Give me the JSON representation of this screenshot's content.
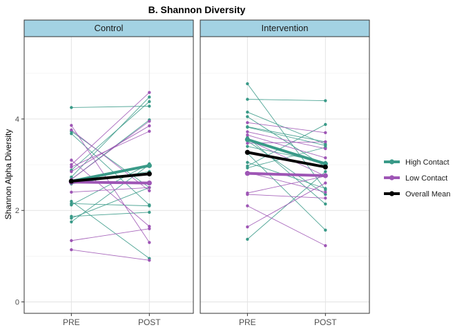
{
  "chart_data": {
    "type": "line",
    "title": "B. Shannon Diversity",
    "ylabel": "Shannon Alpha Diversity",
    "xlabel": "",
    "categories": [
      "PRE",
      "POST"
    ],
    "ylim": [
      -0.25,
      5.8
    ],
    "yticks": [
      0,
      2,
      4
    ],
    "grid": true,
    "legend_position": "right",
    "legend": [
      {
        "key": "high",
        "label": "High Contact",
        "color": "#3a9a88"
      },
      {
        "key": "low",
        "label": "Low Contact",
        "color": "#9e56b5"
      },
      {
        "key": "mean",
        "label": "Overall Mean",
        "color": "#000000"
      }
    ],
    "panels": [
      {
        "title": "Control",
        "individuals": [
          {
            "group": "high",
            "values": [
              4.25,
              4.28
            ]
          },
          {
            "group": "high",
            "values": [
              3.73,
              2.5
            ]
          },
          {
            "group": "high",
            "values": [
              3.68,
              2.12
            ]
          },
          {
            "group": "high",
            "values": [
              2.88,
              4.38
            ]
          },
          {
            "group": "high",
            "values": [
              2.73,
              4.48
            ]
          },
          {
            "group": "high",
            "values": [
              2.68,
              3.98
            ]
          },
          {
            "group": "high",
            "values": [
              2.58,
              2.85
            ]
          },
          {
            "group": "high",
            "values": [
              2.2,
              0.95
            ]
          },
          {
            "group": "high",
            "values": [
              2.15,
              2.1
            ]
          },
          {
            "group": "high",
            "values": [
              2.12,
              3.02
            ]
          },
          {
            "group": "high",
            "values": [
              1.87,
              1.96
            ]
          },
          {
            "group": "high",
            "values": [
              1.83,
              2.5
            ]
          },
          {
            "group": "high",
            "values": [
              1.75,
              3.0
            ]
          },
          {
            "group": "low",
            "values": [
              3.86,
              1.3
            ]
          },
          {
            "group": "low",
            "values": [
              3.76,
              2.43
            ]
          },
          {
            "group": "low",
            "values": [
              3.1,
              1.65
            ]
          },
          {
            "group": "low",
            "values": [
              3.0,
              4.58
            ]
          },
          {
            "group": "low",
            "values": [
              2.95,
              3.73
            ]
          },
          {
            "group": "low",
            "values": [
              2.85,
              3.85
            ]
          },
          {
            "group": "low",
            "values": [
              2.68,
              3.95
            ]
          },
          {
            "group": "low",
            "values": [
              2.4,
              2.5
            ]
          },
          {
            "group": "low",
            "values": [
              1.34,
              1.6
            ]
          },
          {
            "group": "low",
            "values": [
              1.14,
              0.91
            ]
          }
        ],
        "means": [
          {
            "group": "high",
            "values": [
              2.64,
              2.98
            ]
          },
          {
            "group": "low",
            "values": [
              2.62,
              2.6
            ]
          },
          {
            "group": "mean",
            "values": [
              2.64,
              2.8
            ]
          }
        ]
      },
      {
        "title": "Intervention",
        "individuals": [
          {
            "group": "high",
            "values": [
              4.77,
              2.45
            ]
          },
          {
            "group": "high",
            "values": [
              4.43,
              4.4
            ]
          },
          {
            "group": "high",
            "values": [
              4.15,
              3.45
            ]
          },
          {
            "group": "high",
            "values": [
              4.05,
              2.95
            ]
          },
          {
            "group": "high",
            "values": [
              3.83,
              3.5
            ]
          },
          {
            "group": "high",
            "values": [
              3.82,
              3.42
            ]
          },
          {
            "group": "high",
            "values": [
              3.6,
              2.14
            ]
          },
          {
            "group": "high",
            "values": [
              3.52,
              2.35
            ]
          },
          {
            "group": "high",
            "values": [
              3.4,
              3.05
            ]
          },
          {
            "group": "high",
            "values": [
              3.25,
              1.57
            ]
          },
          {
            "group": "high",
            "values": [
              3.05,
              2.48
            ]
          },
          {
            "group": "high",
            "values": [
              2.97,
              3.88
            ]
          },
          {
            "group": "high",
            "values": [
              2.93,
              3.38
            ]
          },
          {
            "group": "high",
            "values": [
              1.37,
              2.85
            ]
          },
          {
            "group": "low",
            "values": [
              3.92,
              3.7
            ]
          },
          {
            "group": "low",
            "values": [
              3.72,
              3.35
            ]
          },
          {
            "group": "low",
            "values": [
              3.65,
              3.15
            ]
          },
          {
            "group": "low",
            "values": [
              3.55,
              2.75
            ]
          },
          {
            "group": "low",
            "values": [
              3.47,
              3.5
            ]
          },
          {
            "group": "low",
            "values": [
              2.83,
              2.4
            ]
          },
          {
            "group": "low",
            "values": [
              2.38,
              2.75
            ]
          },
          {
            "group": "low",
            "values": [
              2.35,
              2.27
            ]
          },
          {
            "group": "low",
            "values": [
              2.1,
              1.23
            ]
          },
          {
            "group": "low",
            "values": [
              1.64,
              2.6
            ]
          }
        ],
        "means": [
          {
            "group": "high",
            "values": [
              3.55,
              3.02
            ]
          },
          {
            "group": "low",
            "values": [
              2.81,
              2.76
            ]
          },
          {
            "group": "mean",
            "values": [
              3.27,
              2.95
            ]
          }
        ]
      }
    ]
  }
}
